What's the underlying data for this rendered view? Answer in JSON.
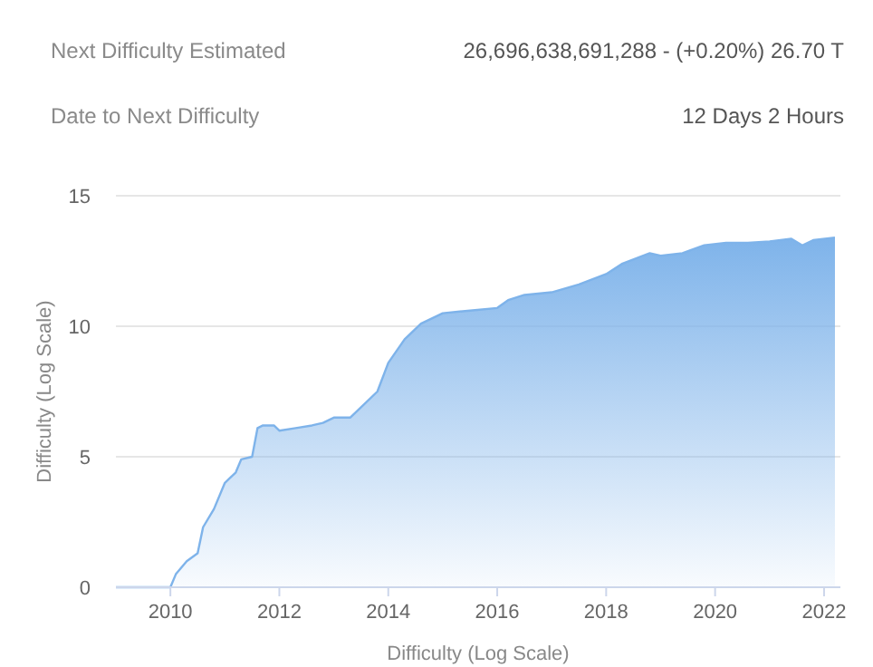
{
  "chart_data": {
    "type": "area",
    "xlabel": "Difficulty (Log Scale)",
    "ylabel": "Difficulty (Log Scale)",
    "annotations": [
      "Next Difficulty Estimated",
      "26,696,638,691,288 - (+0.20%) 26.70 T",
      "Date to Next Difficulty",
      "12 Days 2 Hours"
    ],
    "x": [
      2009,
      2010,
      2010.1,
      2010.3,
      2010.5,
      2010.6,
      2010.8,
      2011,
      2011.2,
      2011.3,
      2011.5,
      2011.6,
      2011.7,
      2011.9,
      2012,
      2012.3,
      2012.6,
      2012.8,
      2013,
      2013.3,
      2013.5,
      2013.8,
      2014,
      2014.3,
      2014.6,
      2015,
      2015.5,
      2016,
      2016.2,
      2016.5,
      2017,
      2017.5,
      2018,
      2018.3,
      2018.8,
      2019,
      2019.4,
      2019.8,
      2020.2,
      2020.6,
      2021,
      2021.4,
      2021.6,
      2021.8,
      2022.2
    ],
    "series": [
      {
        "color": "#7eb3ea",
        "values": [
          0,
          0,
          0.5,
          1,
          1.3,
          2.3,
          3,
          4,
          4.4,
          4.9,
          5,
          6.1,
          6.2,
          6.2,
          6,
          6.1,
          6.2,
          6.3,
          6.5,
          6.5,
          6.9,
          7.5,
          8.6,
          9.5,
          10.1,
          10.5,
          10.6,
          10.7,
          11,
          11.2,
          11.3,
          11.6,
          12,
          12.4,
          12.8,
          12.7,
          12.8,
          13.1,
          13.2,
          13.2,
          13.25,
          13.35,
          13.1,
          13.3,
          13.4
        ]
      }
    ],
    "xlim": [
      2009,
      2022.3
    ],
    "xticks": [
      2010,
      2012,
      2014,
      2016,
      2018,
      2020,
      2022
    ],
    "ylim": [
      0,
      15
    ],
    "yticks": [
      0,
      5,
      10,
      15
    ],
    "grid": "y"
  }
}
